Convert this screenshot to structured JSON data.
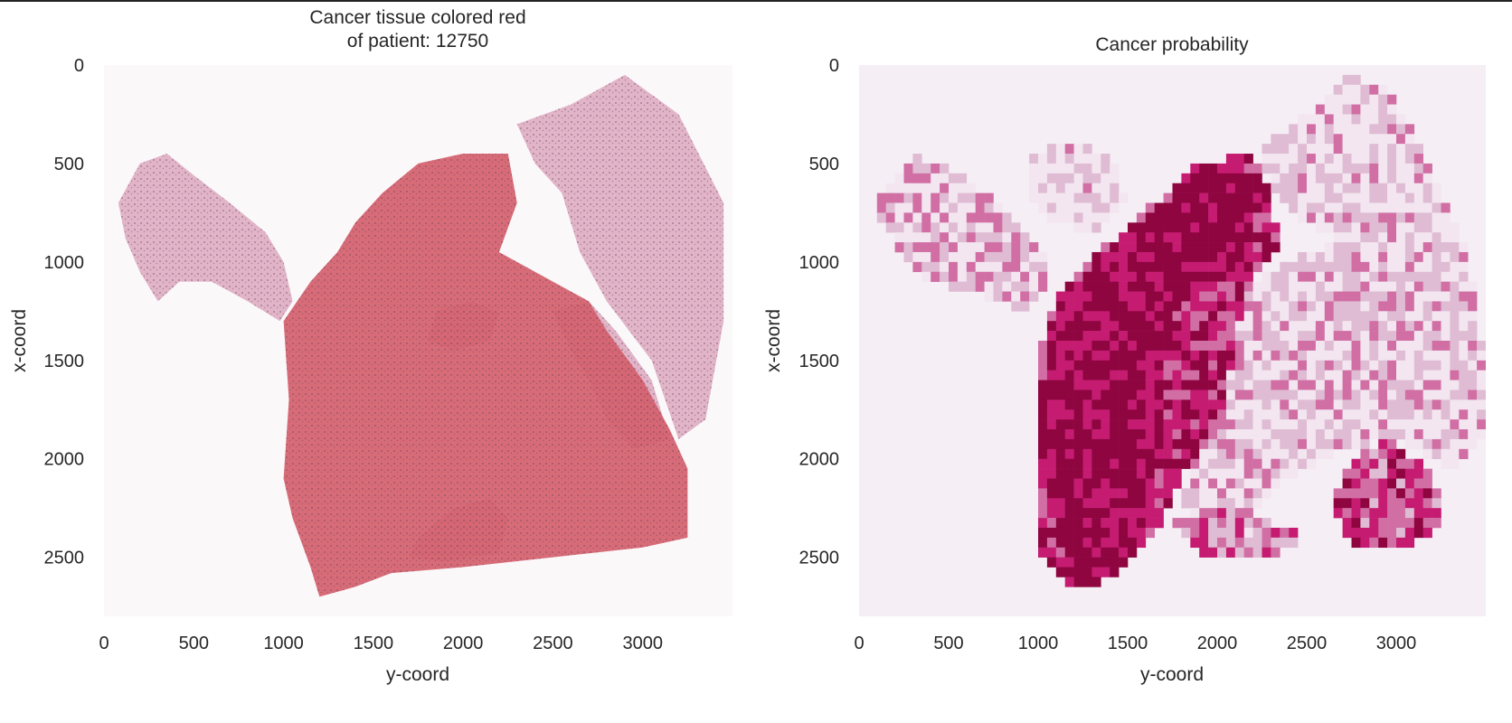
{
  "chart_data": [
    {
      "type": "heatmap",
      "title_lines": [
        "Cancer tissue colored red",
        "of patient: 12750"
      ],
      "xlabel": "y-coord",
      "ylabel": "x-coord",
      "xlim": [
        0,
        3500
      ],
      "ylim": [
        2800,
        0
      ],
      "xticks": [
        0,
        500,
        1000,
        1500,
        2000,
        2500,
        3000
      ],
      "yticks": [
        0,
        500,
        1000,
        1500,
        2000,
        2500
      ],
      "xtick_labels": [
        "0",
        "500",
        "1000",
        "1500",
        "2000",
        "2500",
        "3000"
      ],
      "ytick_labels": [
        "0",
        "500",
        "1000",
        "1500",
        "2000",
        "2500"
      ],
      "grid": false,
      "background": "#fbf8fa",
      "colors": {
        "healthy_tissue": "#dca8bd",
        "cancer_overlay": "#d4606c",
        "nuclei": "#5a3a52"
      },
      "tissue_regions": [
        {
          "label": "cancer",
          "polygon": [
            [
              1050,
              2300
            ],
            [
              1000,
              2100
            ],
            [
              1030,
              1700
            ],
            [
              1000,
              1300
            ],
            [
              1150,
              1100
            ],
            [
              1300,
              950
            ],
            [
              1400,
              800
            ],
            [
              1550,
              650
            ],
            [
              1750,
              500
            ],
            [
              2000,
              450
            ],
            [
              2250,
              450
            ],
            [
              2300,
              700
            ],
            [
              2200,
              950
            ],
            [
              2500,
              1100
            ],
            [
              2700,
              1200
            ],
            [
              2800,
              1350
            ],
            [
              3000,
              1600
            ],
            [
              3150,
              1850
            ],
            [
              3250,
              2050
            ],
            [
              3250,
              2400
            ],
            [
              3000,
              2450
            ],
            [
              2500,
              2500
            ],
            [
              2000,
              2550
            ],
            [
              1600,
              2580
            ],
            [
              1400,
              2650
            ],
            [
              1200,
              2700
            ],
            [
              1150,
              2550
            ]
          ]
        },
        {
          "label": "healthy",
          "polygon": [
            [
              80,
              700
            ],
            [
              200,
              500
            ],
            [
              350,
              450
            ],
            [
              500,
              560
            ],
            [
              700,
              700
            ],
            [
              900,
              850
            ],
            [
              1000,
              1000
            ],
            [
              1050,
              1200
            ],
            [
              980,
              1300
            ],
            [
              800,
              1200
            ],
            [
              600,
              1100
            ],
            [
              420,
              1100
            ],
            [
              300,
              1200
            ],
            [
              200,
              1050
            ],
            [
              120,
              880
            ]
          ]
        },
        {
          "label": "healthy",
          "polygon": [
            [
              1850,
              1250
            ],
            [
              2050,
              1200
            ],
            [
              2200,
              1260
            ],
            [
              2150,
              1400
            ],
            [
              1950,
              1450
            ],
            [
              1800,
              1400
            ]
          ]
        },
        {
          "label": "healthy",
          "polygon": [
            [
              2500,
              1250
            ],
            [
              2700,
              1200
            ],
            [
              2850,
              1350
            ],
            [
              3050,
              1600
            ],
            [
              3150,
              1900
            ],
            [
              2950,
              1950
            ],
            [
              2800,
              1800
            ],
            [
              2700,
              1600
            ],
            [
              2600,
              1450
            ]
          ]
        },
        {
          "label": "healthy",
          "polygon": [
            [
              1750,
              2400
            ],
            [
              1950,
              2250
            ],
            [
              2150,
              2200
            ],
            [
              2250,
              2300
            ],
            [
              2200,
              2480
            ],
            [
              1900,
              2520
            ],
            [
              1700,
              2500
            ]
          ]
        },
        {
          "label": "healthy",
          "polygon": [
            [
              2600,
              200
            ],
            [
              2900,
              50
            ],
            [
              3200,
              250
            ],
            [
              3450,
              700
            ],
            [
              3450,
              1300
            ],
            [
              3350,
              1800
            ],
            [
              3200,
              1900
            ],
            [
              3050,
              1500
            ],
            [
              2800,
              1200
            ],
            [
              2650,
              950
            ],
            [
              2550,
              650
            ],
            [
              2400,
              500
            ],
            [
              2300,
              300
            ]
          ]
        }
      ]
    },
    {
      "type": "heatmap",
      "title": "Cancer probability",
      "xlabel": "y-coord",
      "ylabel": "x-coord",
      "xlim": [
        0,
        3500
      ],
      "ylim": [
        2800,
        0
      ],
      "xticks": [
        0,
        500,
        1000,
        1500,
        2000,
        2500,
        3000
      ],
      "yticks": [
        0,
        500,
        1000,
        1500,
        2000,
        2500
      ],
      "xtick_labels": [
        "0",
        "500",
        "1000",
        "1500",
        "2000",
        "2500",
        "3000"
      ],
      "ytick_labels": [
        "0",
        "500",
        "1000",
        "1500",
        "2000",
        "2500"
      ],
      "grid": false,
      "background": "#f5eef5",
      "cell_size": 50,
      "colormap": [
        "#f3e6f0",
        "#dfbcd3",
        "#d16fa5",
        "#c51c72",
        "#8e0540"
      ],
      "probability_zones": [
        {
          "probability": 0.9,
          "polygon": [
            [
              1050,
              2200
            ],
            [
              1000,
              1800
            ],
            [
              1050,
              1400
            ],
            [
              1150,
              1200
            ],
            [
              1300,
              1000
            ],
            [
              1500,
              850
            ],
            [
              1700,
              700
            ],
            [
              1900,
              550
            ],
            [
              2150,
              520
            ],
            [
              2250,
              650
            ],
            [
              2200,
              900
            ],
            [
              2000,
              1050
            ],
            [
              1800,
              1200
            ],
            [
              1700,
              1500
            ],
            [
              1700,
              1800
            ],
            [
              1650,
              2100
            ],
            [
              1550,
              2400
            ],
            [
              1450,
              2600
            ],
            [
              1300,
              2650
            ],
            [
              1150,
              2550
            ]
          ]
        },
        {
          "probability": 0.7,
          "polygon": [
            [
              1000,
              2450
            ],
            [
              980,
              2000
            ],
            [
              1000,
              1500
            ],
            [
              1100,
              1150
            ],
            [
              1400,
              900
            ],
            [
              1650,
              700
            ],
            [
              1900,
              500
            ],
            [
              2200,
              450
            ],
            [
              2300,
              650
            ],
            [
              2350,
              900
            ],
            [
              2200,
              1100
            ],
            [
              2100,
              1400
            ],
            [
              2050,
              1700
            ],
            [
              1950,
              1900
            ],
            [
              1800,
              2100
            ],
            [
              1650,
              2400
            ],
            [
              1450,
              2600
            ],
            [
              1200,
              2650
            ]
          ]
        },
        {
          "probability": 0.65,
          "polygon": [
            [
              2700,
              2050
            ],
            [
              2950,
              1900
            ],
            [
              3200,
              2050
            ],
            [
              3280,
              2350
            ],
            [
              3050,
              2450
            ],
            [
              2750,
              2450
            ],
            [
              2650,
              2250
            ]
          ]
        },
        {
          "probability": 0.3,
          "polygon": [
            [
              80,
              700
            ],
            [
              300,
              450
            ],
            [
              550,
              550
            ],
            [
              800,
              700
            ],
            [
              1000,
              900
            ],
            [
              1080,
              1100
            ],
            [
              900,
              1250
            ],
            [
              650,
              1150
            ],
            [
              400,
              1100
            ],
            [
              250,
              1000
            ]
          ]
        },
        {
          "probability": 0.25,
          "polygon": [
            [
              2050,
              1200
            ],
            [
              2400,
              1000
            ],
            [
              2700,
              900
            ],
            [
              3000,
              1050
            ],
            [
              3400,
              1100
            ],
            [
              3500,
              1500
            ],
            [
              3500,
              1900
            ],
            [
              3300,
              2050
            ],
            [
              3000,
              1900
            ],
            [
              2700,
              1950
            ],
            [
              2400,
              2100
            ],
            [
              2200,
              2300
            ],
            [
              1900,
              2400
            ],
            [
              1800,
              2200
            ],
            [
              1950,
              1800
            ]
          ]
        },
        {
          "probability": 0.2,
          "polygon": [
            [
              2250,
              400
            ],
            [
              2600,
              200
            ],
            [
              2700,
              50
            ],
            [
              2950,
              100
            ],
            [
              3100,
              350
            ],
            [
              3250,
              650
            ],
            [
              3400,
              950
            ],
            [
              3450,
              1250
            ],
            [
              3150,
              1100
            ],
            [
              2800,
              950
            ],
            [
              2500,
              800
            ],
            [
              2300,
              650
            ]
          ]
        },
        {
          "probability": 0.15,
          "polygon": [
            [
              950,
              450
            ],
            [
              1200,
              400
            ],
            [
              1400,
              450
            ],
            [
              1500,
              700
            ],
            [
              1300,
              850
            ],
            [
              1100,
              800
            ],
            [
              950,
              650
            ]
          ]
        },
        {
          "probability": 0.45,
          "polygon": [
            [
              1750,
              2300
            ],
            [
              2100,
              2250
            ],
            [
              2500,
              2400
            ],
            [
              2300,
              2500
            ],
            [
              1900,
              2500
            ]
          ]
        }
      ]
    }
  ]
}
